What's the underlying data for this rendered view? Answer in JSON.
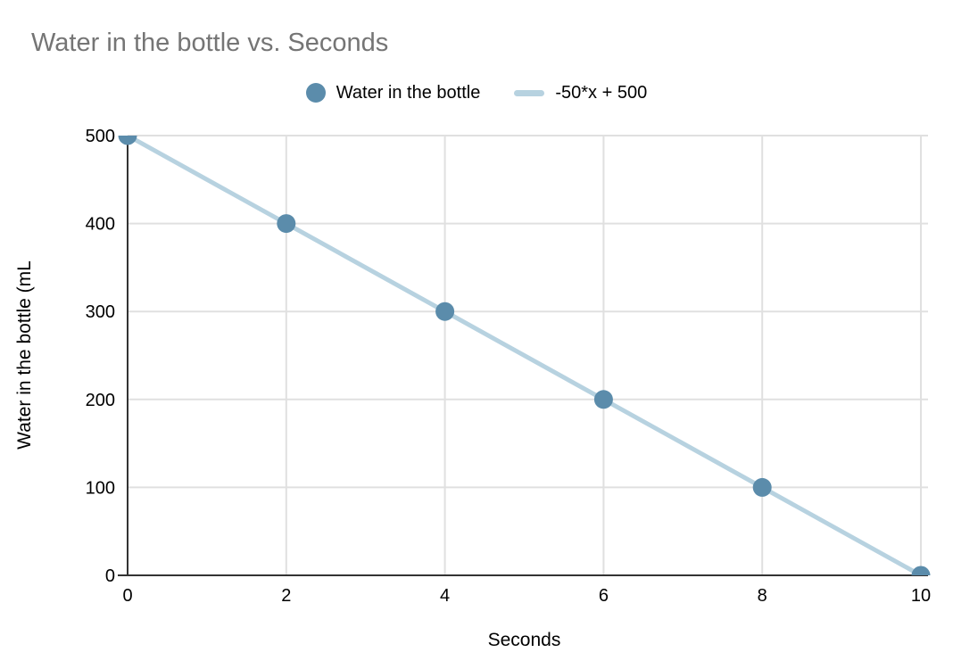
{
  "title": {
    "text": "Water in the bottle vs. Seconds",
    "color": "#757575"
  },
  "legend": {
    "position": "top",
    "items": [
      {
        "label": "Water in the bottle",
        "marker": "circle",
        "color": "#5b8cab"
      },
      {
        "label": "-50*x + 500",
        "marker": "line",
        "color": "#b7d2e0"
      }
    ]
  },
  "chart_data": {
    "type": "scatter",
    "title": "Water in the bottle vs. Seconds",
    "xlabel": "Seconds",
    "ylabel": "Water in the bottle (mL",
    "x": [
      0,
      2,
      4,
      6,
      8,
      10
    ],
    "series": [
      {
        "name": "Water in the bottle",
        "type": "scatter",
        "color": "#5b8cab",
        "values": [
          500,
          400,
          300,
          200,
          100,
          0
        ]
      },
      {
        "name": "-50*x + 500",
        "type": "trendline",
        "color": "#b7d2e0",
        "equation": "-50*x + 500",
        "slope": -50,
        "intercept": 500,
        "endpoints": [
          [
            0,
            500
          ],
          [
            10,
            0
          ]
        ]
      }
    ],
    "xlim": [
      0,
      10
    ],
    "ylim": [
      0,
      500
    ],
    "x_ticks": [
      0,
      2,
      4,
      6,
      8,
      10
    ],
    "y_ticks": [
      0,
      100,
      200,
      300,
      400,
      500
    ],
    "grid": true,
    "legend_position": "top",
    "colors": {
      "grid": "#e0e0e0",
      "axis": "#333333",
      "tick_labels": "#000000",
      "background": "#ffffff",
      "point": "#5b8cab",
      "trendline": "#b7d2e0"
    }
  }
}
